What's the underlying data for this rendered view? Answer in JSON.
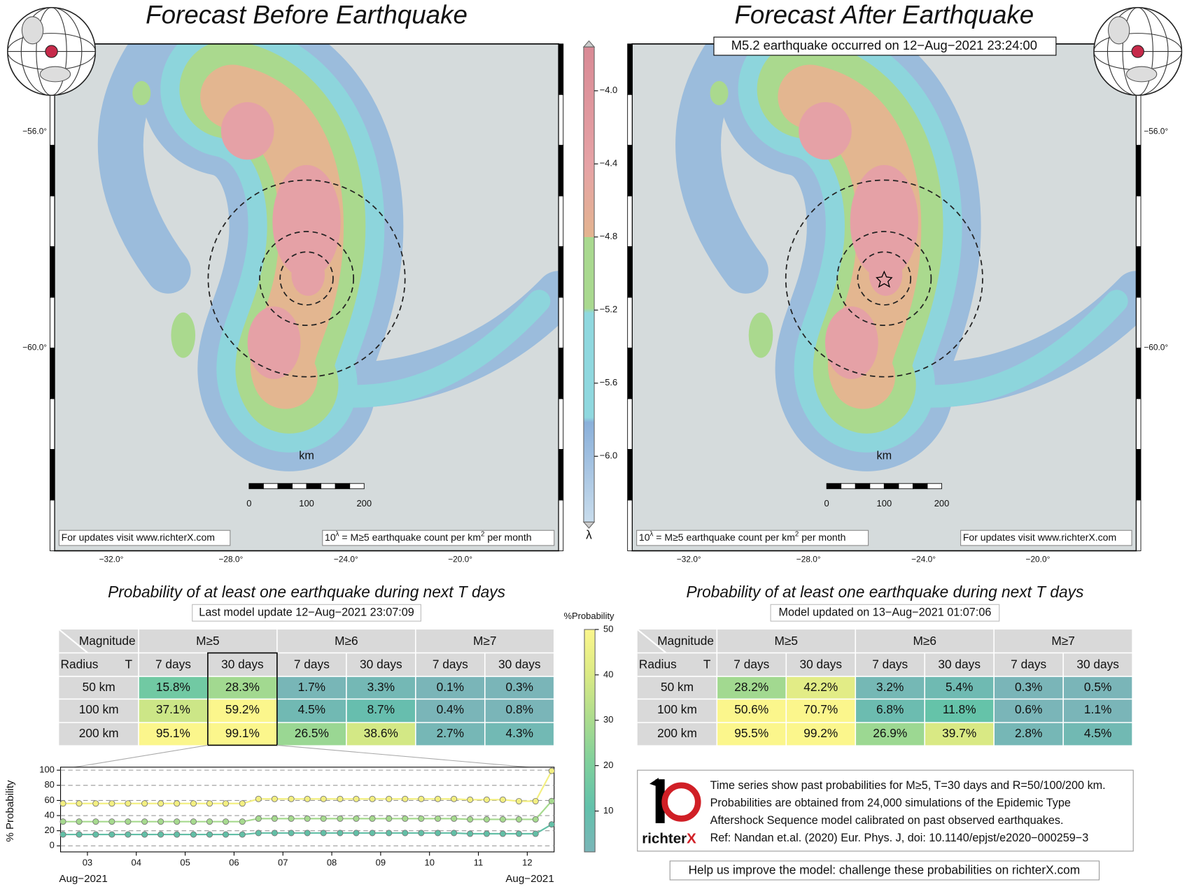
{
  "maps": [
    {
      "title": "Forecast Before Earthquake",
      "lat_ticks": [
        "−56.0°",
        "−60.0°"
      ],
      "lon_ticks": [
        "−32.0°",
        "−28.0°",
        "−24.0°",
        "−20.0°"
      ],
      "scale_unit": "km",
      "scale_ticks": [
        0,
        100,
        200
      ],
      "updates_note": "For updates visit www.richterX.com",
      "lambda_note": [
        "10",
        "λ",
        " = M≥5 earthquake count per km",
        "2",
        " per month"
      ]
    },
    {
      "title": "Forecast After Earthquake",
      "subtitle": "M5.2 earthquake occurred on 12−Aug−2021 23:24:00",
      "lat_ticks": [
        "−56.0°",
        "−60.0°"
      ],
      "lon_ticks": [
        "−32.0°",
        "−28.0°",
        "−24.0°",
        "−20.0°"
      ],
      "scale_unit": "km",
      "scale_ticks": [
        0,
        100,
        200
      ],
      "updates_note": "For updates visit www.richterX.com",
      "lambda_note": [
        "10",
        "λ",
        " = M≥5 earthquake count per km",
        "2",
        " per month"
      ]
    }
  ],
  "map_colorbar": {
    "label": "λ",
    "lim": [
      -6.36,
      -3.76
    ],
    "ticks": [
      {
        "value": -4,
        "label": "−4.0"
      },
      {
        "value": -4.4,
        "label": "−4.4"
      },
      {
        "value": -4.8,
        "label": "−4.8"
      },
      {
        "value": -5.2,
        "label": "−5.2"
      },
      {
        "value": -5.6,
        "label": "−5.6"
      },
      {
        "value": -6,
        "label": "−6.0"
      }
    ]
  },
  "tables": [
    {
      "title": "Probability of at least one earthquake during next T days",
      "update": "Last model update 12−Aug−2021 23:07:09",
      "corner_top": "Magnitude",
      "corner_left": "Radius",
      "corner_right": "T",
      "magnitudes": [
        "M≥5",
        "M≥6",
        "M≥7"
      ],
      "periods": [
        "7 days",
        "30 days",
        "7 days",
        "30 days",
        "7 days",
        "30 days"
      ],
      "rows": [
        {
          "radius": "50 km",
          "values": [
            15.8,
            28.3,
            1.7,
            3.3,
            0.1,
            0.3
          ],
          "value_labels": [
            "15.8%",
            "28.3%",
            "1.7%",
            "3.3%",
            "0.1%",
            "0.3%"
          ]
        },
        {
          "radius": "100 km",
          "values": [
            37.1,
            59.2,
            4.5,
            8.7,
            0.4,
            0.8
          ],
          "value_labels": [
            "37.1%",
            "59.2%",
            "4.5%",
            "8.7%",
            "0.4%",
            "0.8%"
          ]
        },
        {
          "radius": "200 km",
          "values": [
            95.1,
            99.1,
            26.5,
            38.6,
            2.7,
            4.3
          ],
          "value_labels": [
            "95.1%",
            "99.1%",
            "26.5%",
            "38.6%",
            "2.7%",
            "4.3%"
          ]
        }
      ]
    },
    {
      "title": "Probability of at least one earthquake during next T days",
      "update": "Model updated on 13−Aug−2021 01:07:06",
      "corner_top": "Magnitude",
      "corner_left": "Radius",
      "corner_right": "T",
      "magnitudes": [
        "M≥5",
        "M≥6",
        "M≥7"
      ],
      "periods": [
        "7 days",
        "30 days",
        "7 days",
        "30 days",
        "7 days",
        "30 days"
      ],
      "rows": [
        {
          "radius": "50 km",
          "values": [
            28.2,
            42.2,
            3.2,
            5.4,
            0.3,
            0.5
          ],
          "value_labels": [
            "28.2%",
            "42.2%",
            "3.2%",
            "5.4%",
            "0.3%",
            "0.5%"
          ]
        },
        {
          "radius": "100 km",
          "values": [
            50.6,
            70.7,
            6.8,
            11.8,
            0.6,
            1.1
          ],
          "value_labels": [
            "50.6%",
            "70.7%",
            "6.8%",
            "11.8%",
            "0.6%",
            "1.1%"
          ]
        },
        {
          "radius": "200 km",
          "values": [
            95.5,
            99.2,
            26.9,
            39.7,
            2.8,
            4.5
          ],
          "value_labels": [
            "95.5%",
            "99.2%",
            "26.9%",
            "39.7%",
            "2.8%",
            "4.5%"
          ]
        }
      ]
    }
  ],
  "prob_colorbar": {
    "label": "%Probability",
    "lim": [
      1,
      50
    ],
    "ticks": [
      10,
      20,
      30,
      40,
      50
    ]
  },
  "chart_data": {
    "type": "line",
    "ylabel": "% Probability",
    "ylim": [
      -8,
      100
    ],
    "yticks": [
      0,
      20,
      40,
      60,
      80,
      100
    ],
    "grid": true,
    "xlim": [
      2.45,
      12.55
    ],
    "xticks": [
      {
        "value": 3,
        "label": "03"
      },
      {
        "value": 4,
        "label": "04"
      },
      {
        "value": 5,
        "label": "05"
      },
      {
        "value": 6,
        "label": "06"
      },
      {
        "value": 7,
        "label": "07"
      },
      {
        "value": 8,
        "label": "08"
      },
      {
        "value": 9,
        "label": "09"
      },
      {
        "value": 10,
        "label": "10"
      },
      {
        "value": 11,
        "label": "11"
      },
      {
        "value": 12,
        "label": "12"
      }
    ],
    "date_labels": [
      "Aug−2021",
      "Aug−2021"
    ],
    "x": [
      2.5,
      2.83,
      3.17,
      3.5,
      3.83,
      4.17,
      4.5,
      4.83,
      5.17,
      5.5,
      5.83,
      6.17,
      6.5,
      6.83,
      7.17,
      7.5,
      7.83,
      8.17,
      8.5,
      8.83,
      9.17,
      9.5,
      9.83,
      10.17,
      10.5,
      10.83,
      11.17,
      11.5,
      11.83,
      12.17,
      12.5
    ],
    "series": [
      {
        "color": "#f3ef80",
        "values": [
          56,
          56,
          56,
          56,
          56,
          56,
          56,
          56,
          56,
          56,
          56,
          56,
          62,
          62,
          62,
          62,
          62,
          62,
          62,
          62,
          62,
          62,
          62,
          62,
          62,
          61,
          61,
          61,
          59,
          59,
          99.1
        ]
      },
      {
        "color": "#a6da8e",
        "values": [
          32,
          32,
          32,
          32,
          32,
          32,
          32,
          32,
          32,
          32,
          32,
          32,
          36,
          36,
          36,
          36,
          36,
          36,
          36,
          36,
          36,
          36,
          36,
          36,
          36,
          35,
          35,
          35,
          35,
          35,
          59.2
        ]
      },
      {
        "color": "#62bfa6",
        "values": [
          15,
          15,
          15,
          15,
          15,
          15,
          15,
          15,
          15,
          15,
          15,
          15,
          17,
          17,
          17,
          17,
          17,
          17,
          17,
          17,
          17,
          17,
          17,
          17,
          17,
          16,
          16,
          16,
          16,
          16,
          28.3
        ]
      }
    ]
  },
  "info": {
    "lines": [
      "Time series show past probabilities for M≥5, T=30 days and R=50/100/200 km.",
      "Probabilities are obtained from 24,000 simulations of the Epidemic Type",
      "Aftershock Sequence model calibrated on past observed earthquakes.",
      "Ref: Nandan et.al. (2020) Eur. Phys. J, doi: 10.1140/epjst/e2020−000259−3"
    ],
    "logo": [
      "richter",
      "X"
    ],
    "footer": "Help us improve the model: challenge these probabilities on richterX.com"
  }
}
